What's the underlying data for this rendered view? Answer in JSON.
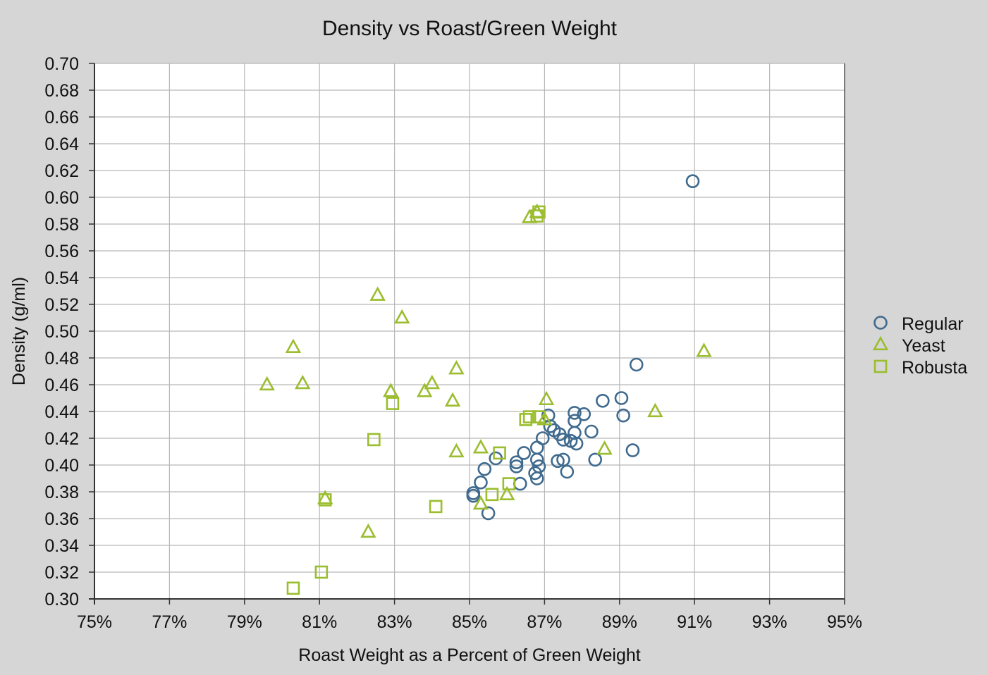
{
  "chart_data": {
    "type": "scatter",
    "title": "Density vs Roast/Green Weight",
    "xlabel": "Roast Weight as a Percent of Green Weight",
    "ylabel": "Density (g/ml)",
    "xlim": [
      75,
      95
    ],
    "ylim": [
      0.3,
      0.7
    ],
    "x_ticks": [
      75,
      77,
      79,
      81,
      83,
      85,
      87,
      89,
      91,
      93,
      95
    ],
    "x_tick_labels": [
      "75%",
      "77%",
      "79%",
      "81%",
      "83%",
      "85%",
      "87%",
      "89%",
      "91%",
      "93%",
      "95%"
    ],
    "y_ticks": [
      0.3,
      0.32,
      0.34,
      0.36,
      0.38,
      0.4,
      0.42,
      0.44,
      0.46,
      0.48,
      0.5,
      0.52,
      0.54,
      0.56,
      0.58,
      0.6,
      0.62,
      0.64,
      0.66,
      0.68,
      0.7
    ],
    "y_tick_labels": [
      "0.30",
      "0.32",
      "0.34",
      "0.36",
      "0.38",
      "0.40",
      "0.42",
      "0.44",
      "0.46",
      "0.48",
      "0.50",
      "0.52",
      "0.54",
      "0.56",
      "0.58",
      "0.60",
      "0.62",
      "0.64",
      "0.66",
      "0.68",
      "0.70"
    ],
    "grid": true,
    "legend_position": "right",
    "series": [
      {
        "name": "Regular",
        "marker": "circle",
        "color": "#3f6a8e",
        "points": [
          [
            90.95,
            0.612
          ],
          [
            89.45,
            0.475
          ],
          [
            89.05,
            0.45
          ],
          [
            88.55,
            0.448
          ],
          [
            89.1,
            0.437
          ],
          [
            89.35,
            0.411
          ],
          [
            88.05,
            0.438
          ],
          [
            87.8,
            0.439
          ],
          [
            87.8,
            0.433
          ],
          [
            87.1,
            0.437
          ],
          [
            88.25,
            0.425
          ],
          [
            87.8,
            0.424
          ],
          [
            87.15,
            0.429
          ],
          [
            87.25,
            0.426
          ],
          [
            87.4,
            0.423
          ],
          [
            87.5,
            0.419
          ],
          [
            87.7,
            0.418
          ],
          [
            87.85,
            0.416
          ],
          [
            86.95,
            0.42
          ],
          [
            86.8,
            0.413
          ],
          [
            86.45,
            0.409
          ],
          [
            85.7,
            0.405
          ],
          [
            86.25,
            0.402
          ],
          [
            86.25,
            0.399
          ],
          [
            86.8,
            0.404
          ],
          [
            86.85,
            0.399
          ],
          [
            86.75,
            0.394
          ],
          [
            86.8,
            0.39
          ],
          [
            87.35,
            0.403
          ],
          [
            87.5,
            0.404
          ],
          [
            87.6,
            0.395
          ],
          [
            88.35,
            0.404
          ],
          [
            85.4,
            0.397
          ],
          [
            85.3,
            0.387
          ],
          [
            86.35,
            0.386
          ],
          [
            85.1,
            0.379
          ],
          [
            85.1,
            0.377
          ],
          [
            85.5,
            0.364
          ]
        ]
      },
      {
        "name": "Yeast",
        "marker": "triangle",
        "color": "#9bbd2e",
        "points": [
          [
            86.6,
            0.585
          ],
          [
            86.8,
            0.589
          ],
          [
            82.55,
            0.527
          ],
          [
            83.2,
            0.51
          ],
          [
            80.3,
            0.488
          ],
          [
            91.25,
            0.485
          ],
          [
            84.65,
            0.472
          ],
          [
            79.6,
            0.46
          ],
          [
            80.55,
            0.461
          ],
          [
            82.9,
            0.455
          ],
          [
            83.8,
            0.455
          ],
          [
            84.0,
            0.461
          ],
          [
            84.55,
            0.448
          ],
          [
            87.05,
            0.449
          ],
          [
            89.95,
            0.44
          ],
          [
            87.0,
            0.434
          ],
          [
            85.3,
            0.413
          ],
          [
            84.65,
            0.41
          ],
          [
            88.6,
            0.412
          ],
          [
            86.0,
            0.378
          ],
          [
            85.3,
            0.371
          ],
          [
            82.3,
            0.35
          ],
          [
            81.15,
            0.375
          ]
        ]
      },
      {
        "name": "Robusta",
        "marker": "square",
        "color": "#9bbd2e",
        "points": [
          [
            86.85,
            0.589
          ],
          [
            86.8,
            0.586
          ],
          [
            82.95,
            0.446
          ],
          [
            86.5,
            0.434
          ],
          [
            86.6,
            0.436
          ],
          [
            86.85,
            0.436
          ],
          [
            82.45,
            0.419
          ],
          [
            85.8,
            0.409
          ],
          [
            86.05,
            0.386
          ],
          [
            85.6,
            0.378
          ],
          [
            81.15,
            0.374
          ],
          [
            84.1,
            0.369
          ],
          [
            81.05,
            0.32
          ],
          [
            80.3,
            0.308
          ]
        ]
      }
    ]
  },
  "colors": {
    "background": "#d6d6d6",
    "plot_background": "#ffffff",
    "grid": "#b8b8b8",
    "axis": "#333333"
  }
}
